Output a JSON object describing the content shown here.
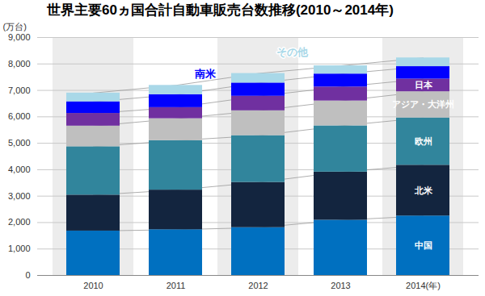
{
  "chart_data": {
    "type": "bar",
    "title": "世界主要60ヵ国合計自動車販売台数推移(2010～2014年)",
    "y_label": "(万台)",
    "categories": [
      "2010",
      "2011",
      "2012",
      "2013",
      "2014(年)"
    ],
    "series": [
      {
        "name": "中国",
        "color": "#0070c0",
        "values": [
          1680,
          1730,
          1810,
          2090,
          2250
        ]
      },
      {
        "name": "北米",
        "color": "#13253f",
        "values": [
          1360,
          1500,
          1710,
          1820,
          1920
        ]
      },
      {
        "name": "欧州",
        "color": "#31859c",
        "values": [
          1830,
          1870,
          1770,
          1750,
          1790
        ]
      },
      {
        "name": "アジア・大洋州",
        "color": "#bfbfbf",
        "values": [
          780,
          830,
          940,
          940,
          990
        ]
      },
      {
        "name": "日本",
        "color": "#7030a0",
        "values": [
          480,
          420,
          550,
          530,
          480
        ]
      },
      {
        "name": "南米",
        "color": "#0000ff",
        "values": [
          440,
          490,
          500,
          490,
          470
        ]
      },
      {
        "name": "その他",
        "color": "#a9d8e8",
        "values": [
          330,
          350,
          360,
          310,
          330
        ]
      }
    ],
    "ylim": [
      0,
      9000
    ],
    "yticks": [
      0,
      {
        "value": 1000,
        "label": "1,000"
      },
      {
        "value": 2000,
        "label": "2,000"
      },
      {
        "value": 3000,
        "label": "3,000"
      },
      {
        "value": 4000,
        "label": "4,000"
      },
      {
        "value": 5000,
        "label": "5,000"
      },
      {
        "value": 6000,
        "label": "6,000"
      },
      {
        "value": 7000,
        "label": "7,000"
      },
      {
        "value": 8000,
        "label": "8,000"
      },
      {
        "value": 9000,
        "label": "9,000"
      }
    ],
    "stacked": true,
    "grid": true
  }
}
